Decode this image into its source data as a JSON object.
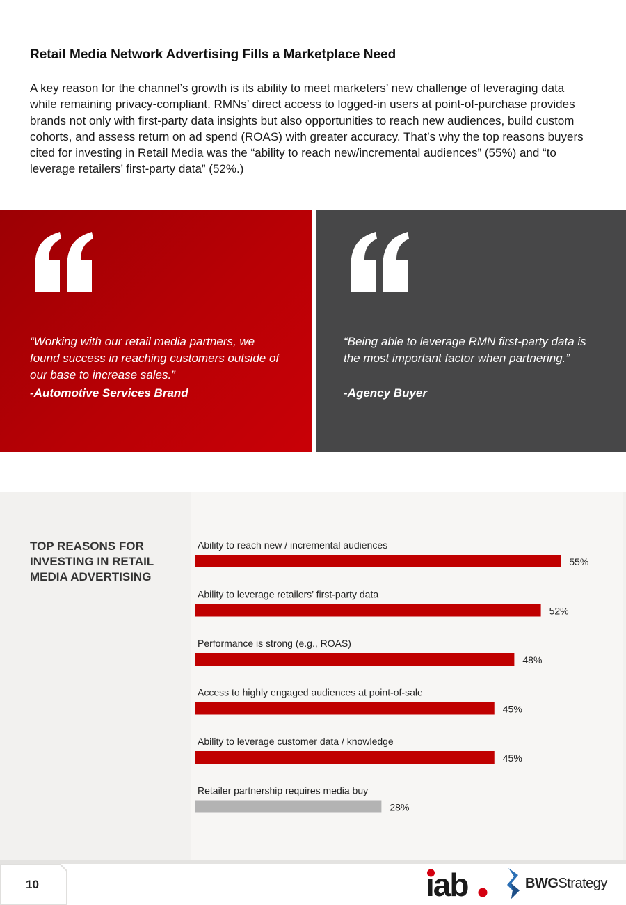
{
  "heading": "Retail Media Network Advertising Fills a Marketplace Need",
  "intro": "A key reason for the channel’s growth is its ability to meet marketers’ new challenge of leveraging data while remaining privacy-compliant. RMNs’ direct access to logged-in users at point-of-purchase provides brands not only with first-party data insights but also opportunities to reach new audiences, build custom cohorts, and assess return on ad spend (ROAS) with greater accuracy. That’s why the top reasons buyers cited for investing in Retail Media was the “ability to reach new/incremental audiences” (55%) and “to leverage retailers’ first-party data” (52%.)",
  "quotes": [
    {
      "text": "“Working with our retail media partners, we found success in reaching customers outside of our base to increase sales.”",
      "attribution": "-Automotive Services Brand",
      "color": "#b80005"
    },
    {
      "text": "“Being able to leverage RMN first-party data is the most important factor when partnering.”",
      "attribution": "-Agency Buyer",
      "color": "#474748"
    }
  ],
  "chart_title": "TOP REASONS FOR INVESTING IN RETAIL MEDIA ADVERTISING",
  "chart_data": {
    "type": "bar",
    "orientation": "horizontal",
    "categories": [
      "Ability to reach new / incremental audiences",
      "Ability to leverage retailers’ first-party data",
      "Performance is strong (e.g., ROAS)",
      "Access to highly engaged audiences at point-of-sale",
      "Ability to leverage customer data / knowledge",
      "Retailer partnership requires media buy"
    ],
    "values": [
      55,
      52,
      48,
      45,
      45,
      28
    ],
    "value_labels": [
      "55%",
      "52%",
      "48%",
      "45%",
      "45%",
      "28%"
    ],
    "unit": "%",
    "colors": [
      "#c00000",
      "#c00000",
      "#c00000",
      "#c00000",
      "#c00000",
      "#b3b3b3"
    ]
  },
  "footer": {
    "page_number": "10",
    "iab_logo": "iab.",
    "bwg_logo_bold": "BWG",
    "bwg_logo_light": "Strategy"
  },
  "colors": {
    "accent_red": "#c00000",
    "dark_grey": "#474748",
    "panel_bg": "#f2f1ef"
  }
}
